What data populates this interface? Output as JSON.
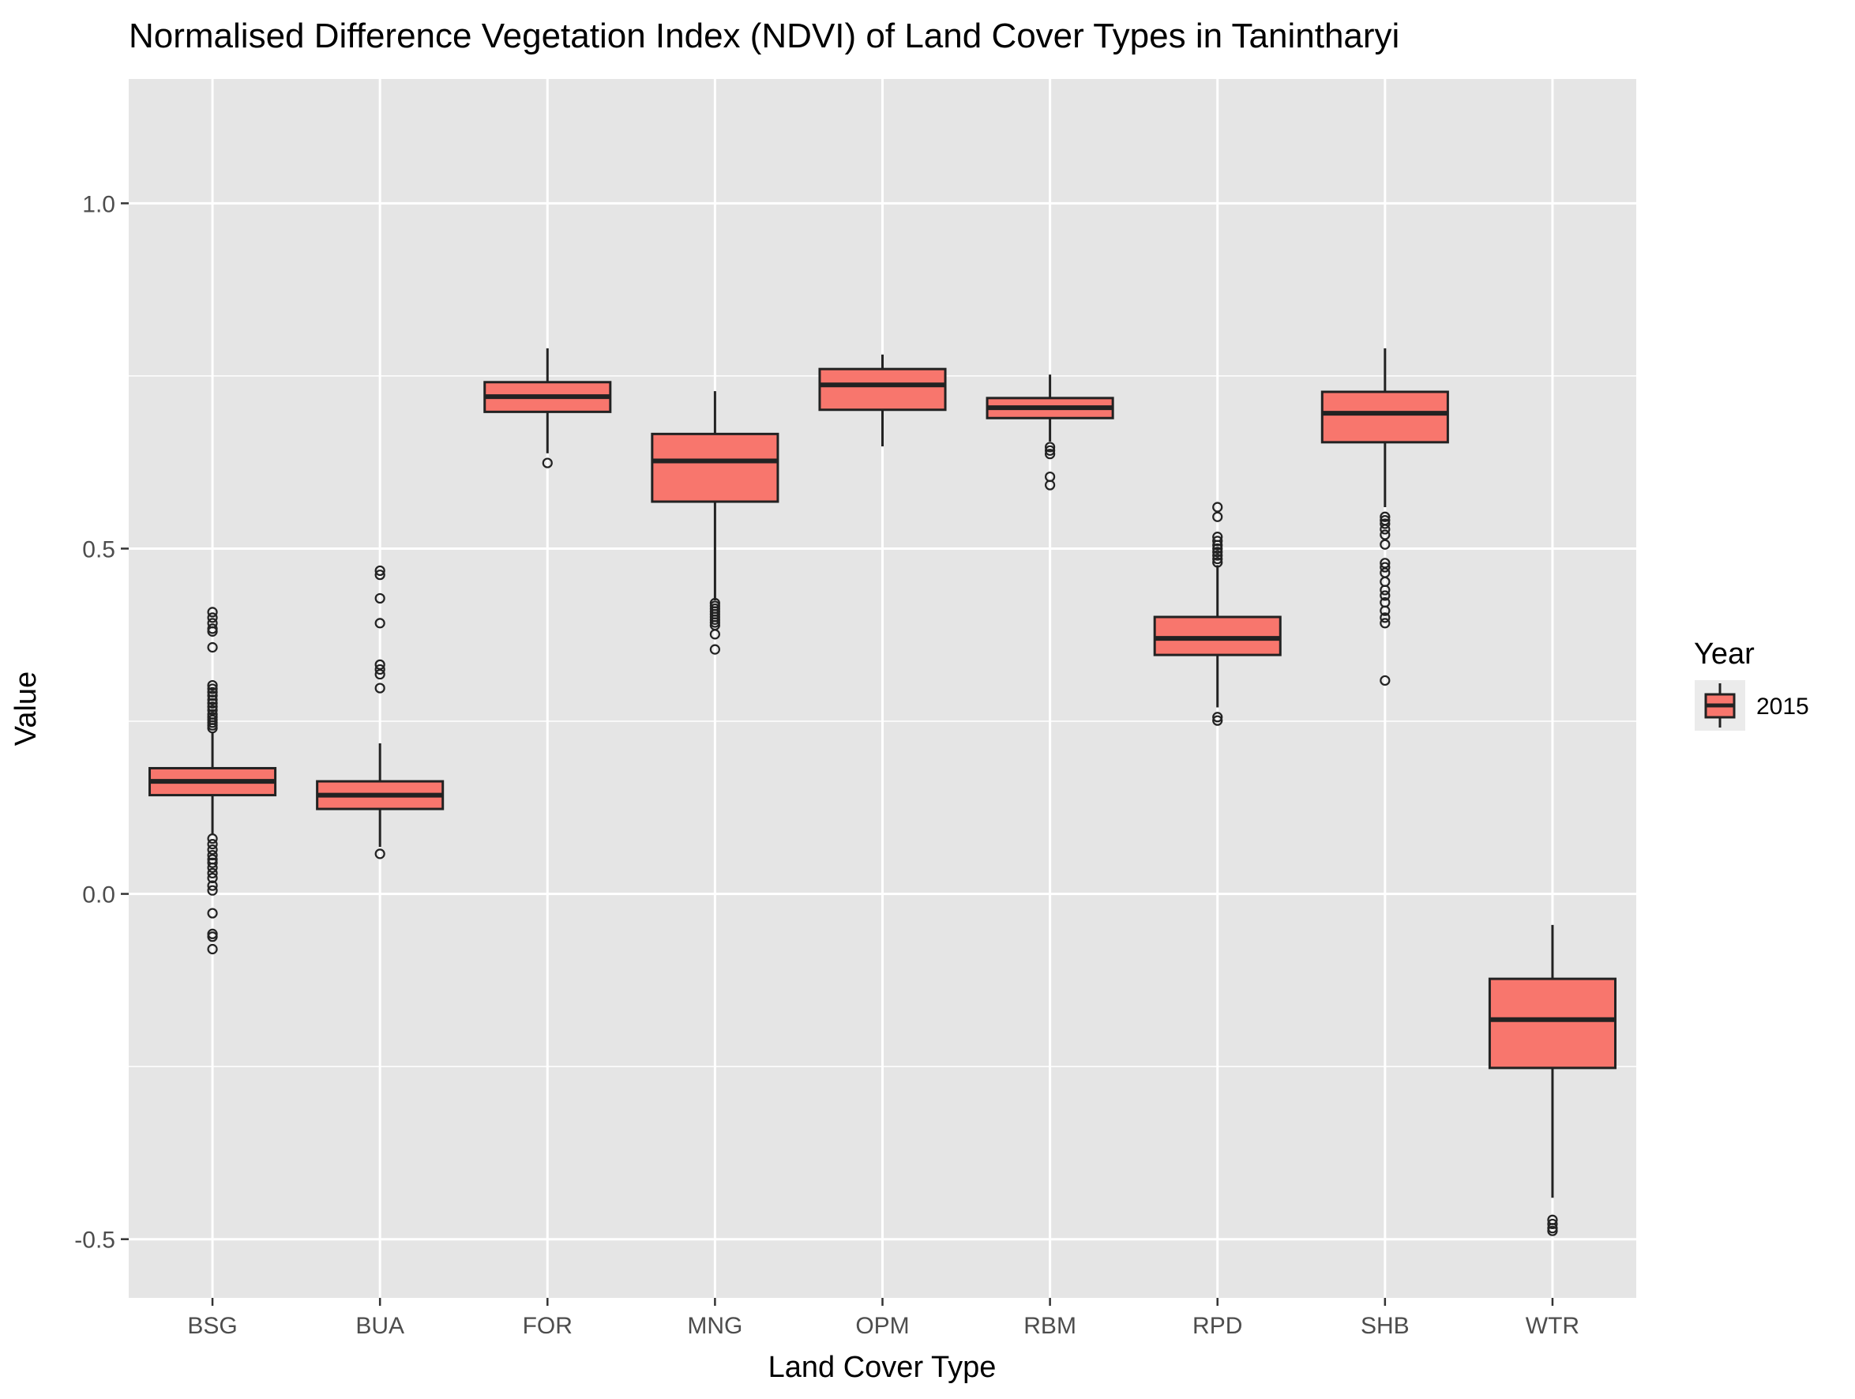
{
  "chart_data": {
    "type": "box",
    "title": "Normalised Difference Vegetation Index (NDVI) of Land Cover Types in Tanintharyi",
    "xlabel": "Land Cover Type",
    "ylabel": "Value",
    "categories": [
      "BSG",
      "BUA",
      "FOR",
      "MNG",
      "OPM",
      "RBM",
      "RPD",
      "SHB",
      "WTR"
    ],
    "ylim": [
      -0.585,
      1.18
    ],
    "yticks": [
      -0.5,
      0.0,
      0.5,
      1.0
    ],
    "ytick_labels": [
      "-0.5",
      "0.0",
      "0.5",
      "1.0"
    ],
    "grid": true,
    "legend": {
      "title": "Year",
      "position": "right",
      "entries": [
        "2015"
      ]
    },
    "colors": {
      "fill": "#F8766D",
      "stroke": "#222222",
      "panel": "#E5E5E5",
      "grid": "#FFFFFF"
    },
    "series": [
      {
        "name": "2015",
        "boxes": [
          {
            "category": "BSG",
            "whisker_low": 0.085,
            "q1": 0.143,
            "median": 0.163,
            "q3": 0.182,
            "whisker_high": 0.235,
            "outliers": [
              0.408,
              0.4,
              0.392,
              0.384,
              0.38,
              0.357,
              0.302,
              0.297,
              0.292,
              0.287,
              0.281,
              0.276,
              0.271,
              0.266,
              0.26,
              0.256,
              0.252,
              0.248,
              0.244,
              0.24,
              0.08,
              0.072,
              0.064,
              0.056,
              0.05,
              0.045,
              0.038,
              0.03,
              0.023,
              0.012,
              0.005,
              -0.028,
              -0.058,
              -0.062,
              -0.08
            ]
          },
          {
            "category": "BUA",
            "whisker_low": 0.068,
            "q1": 0.123,
            "median": 0.143,
            "q3": 0.163,
            "whisker_high": 0.218,
            "outliers": [
              0.468,
              0.462,
              0.428,
              0.392,
              0.332,
              0.325,
              0.318,
              0.298,
              0.058
            ]
          },
          {
            "category": "FOR",
            "whisker_low": 0.638,
            "q1": 0.698,
            "median": 0.72,
            "q3": 0.741,
            "whisker_high": 0.79,
            "outliers": [
              0.624
            ]
          },
          {
            "category": "MNG",
            "whisker_low": 0.425,
            "q1": 0.568,
            "median": 0.627,
            "q3": 0.666,
            "whisker_high": 0.728,
            "outliers": [
              0.421,
              0.417,
              0.413,
              0.409,
              0.405,
              0.401,
              0.397,
              0.393,
              0.389,
              0.376,
              0.354
            ]
          },
          {
            "category": "OPM",
            "whisker_low": 0.648,
            "q1": 0.701,
            "median": 0.737,
            "q3": 0.76,
            "whisker_high": 0.781,
            "outliers": []
          },
          {
            "category": "RBM",
            "whisker_low": 0.655,
            "q1": 0.689,
            "median": 0.704,
            "q3": 0.718,
            "whisker_high": 0.752,
            "outliers": [
              0.647,
              0.642,
              0.637,
              0.604,
              0.592
            ]
          },
          {
            "category": "RPD",
            "whisker_low": 0.27,
            "q1": 0.346,
            "median": 0.37,
            "q3": 0.401,
            "whisker_high": 0.476,
            "outliers": [
              0.56,
              0.546,
              0.517,
              0.511,
              0.505,
              0.5,
              0.495,
              0.49,
              0.485,
              0.48,
              0.256,
              0.251
            ]
          },
          {
            "category": "SHB",
            "whisker_low": 0.56,
            "q1": 0.654,
            "median": 0.696,
            "q3": 0.727,
            "whisker_high": 0.79,
            "outliers": [
              0.546,
              0.541,
              0.536,
              0.528,
              0.52,
              0.506,
              0.479,
              0.473,
              0.465,
              0.452,
              0.44,
              0.432,
              0.422,
              0.41,
              0.4,
              0.392,
              0.309
            ]
          },
          {
            "category": "WTR",
            "whisker_low": -0.44,
            "q1": -0.252,
            "median": -0.182,
            "q3": -0.123,
            "whisker_high": -0.045,
            "outliers": [
              -0.472,
              -0.478,
              -0.484,
              -0.488
            ]
          }
        ]
      }
    ]
  }
}
